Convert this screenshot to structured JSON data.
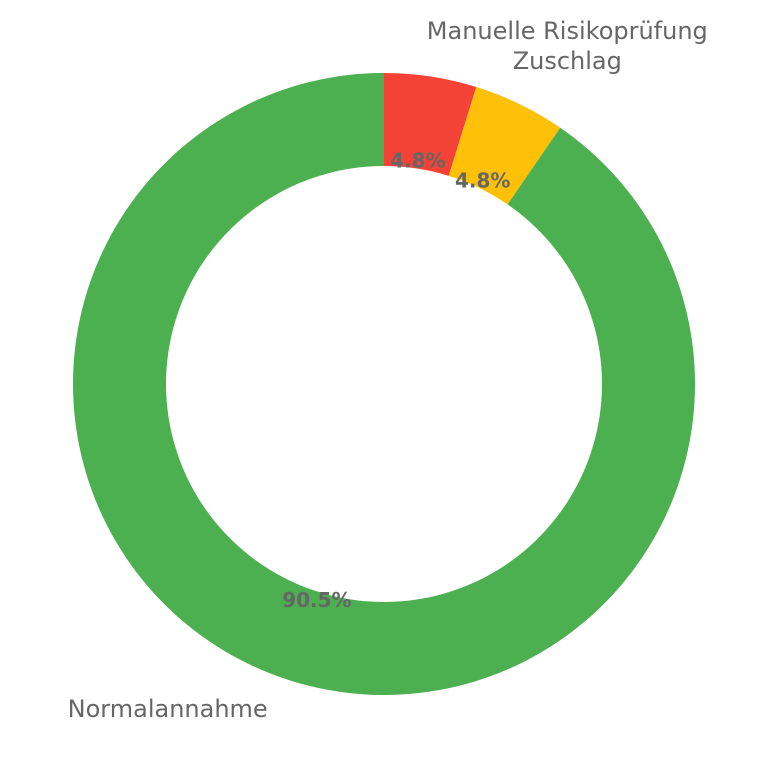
{
  "chart_data": {
    "type": "pie",
    "variant": "donut",
    "title": "",
    "categories": [
      "Manuelle Risikoprüfung",
      "Zuschlag",
      "Normalannahme"
    ],
    "values": [
      4.8,
      4.8,
      90.5
    ],
    "value_labels": [
      "4.8%",
      "4.8%",
      "90.5%"
    ],
    "colors": [
      "#f44336",
      "#ffc107",
      "#4caf50"
    ],
    "start_angle": "12 o'clock",
    "direction": "clockwise",
    "legend": "none"
  }
}
